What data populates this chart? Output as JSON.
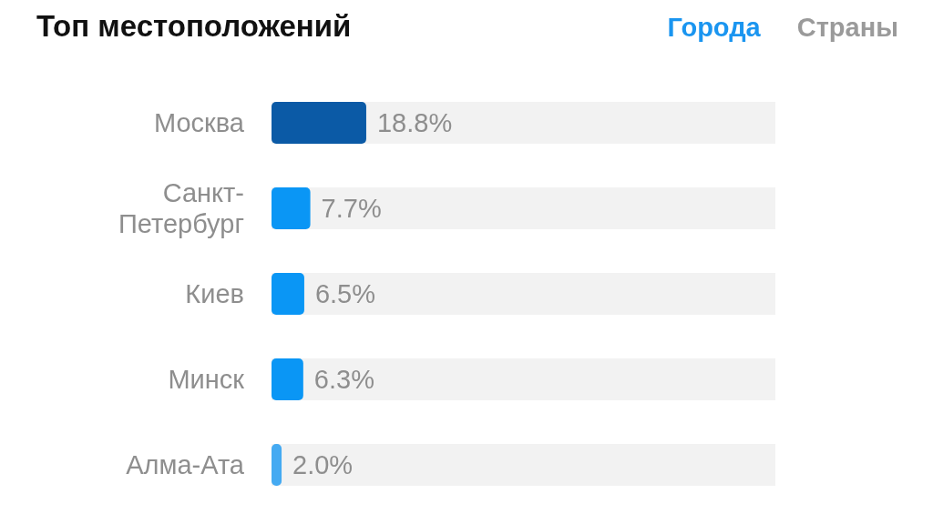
{
  "chart_data": {
    "type": "bar",
    "orientation": "horizontal",
    "title": "Топ местоположений",
    "annotations": [
      "Города",
      "Страны"
    ],
    "categories": [
      "Москва",
      "Санкт-Петербург",
      "Киев",
      "Минск",
      "Алма-Ата"
    ],
    "values": [
      18.8,
      7.7,
      6.5,
      6.3,
      2.0
    ],
    "colors": [
      "#0b5aa6",
      "#0a96f5",
      "#0a96f5",
      "#0a96f5",
      "#45aaf2"
    ],
    "value_labels": [
      "18.8%",
      "7.7%",
      "6.5%",
      "6.3%",
      "2.0%"
    ],
    "xlim": [
      0,
      100
    ],
    "tick_labels": "y"
  }
}
